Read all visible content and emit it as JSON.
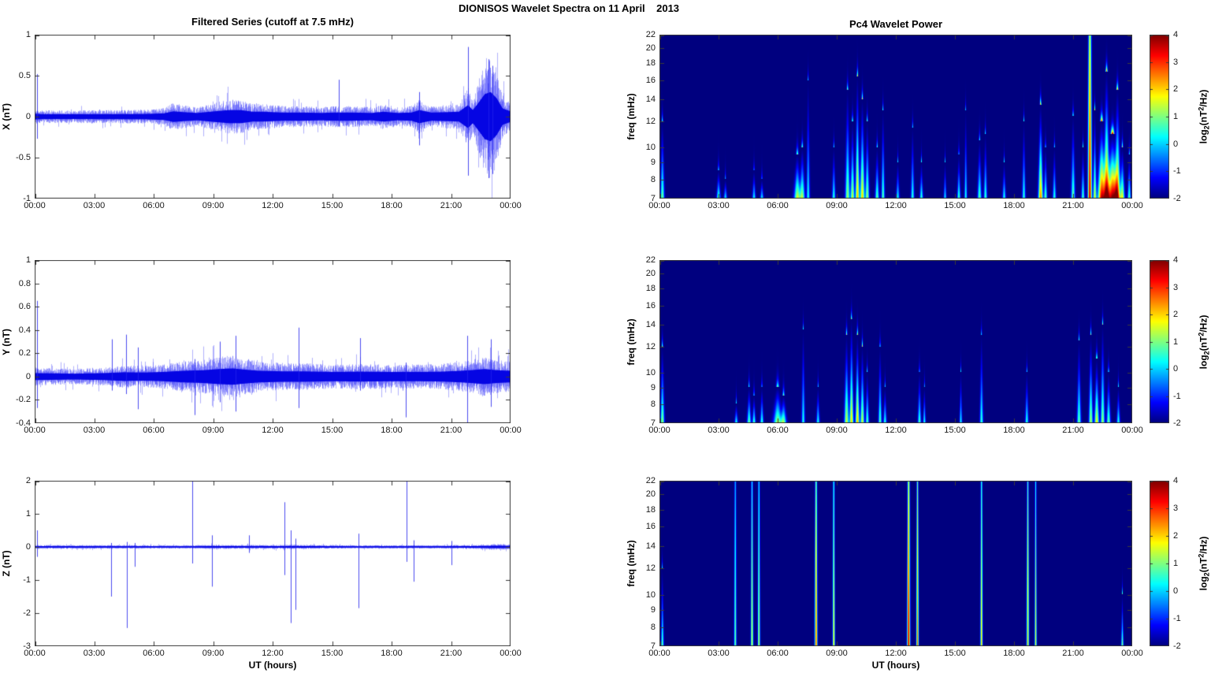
{
  "figure": {
    "title": "DIONISOS Wavelet Spectra on 11 April    2013"
  },
  "columns": {
    "left_title": "Filtered Series (cutoff at 7.5 mHz)",
    "right_title": "Pc4 Wavelet Power"
  },
  "time_axis": {
    "label": "UT (hours)",
    "tick_hours": [
      0,
      3,
      6,
      9,
      12,
      15,
      18,
      21,
      24
    ],
    "tick_labels": [
      "00:00",
      "03:00",
      "06:00",
      "09:00",
      "12:00",
      "15:00",
      "18:00",
      "21:00",
      "00:00"
    ],
    "range_hours": [
      0,
      24
    ]
  },
  "freq_axis": {
    "label": "freq (mHz)",
    "scale": "log",
    "ticks": [
      22,
      20,
      18,
      16,
      14,
      12,
      10,
      9,
      8,
      7
    ],
    "range_mhz": [
      7,
      22
    ]
  },
  "colorbar": {
    "label_parts": {
      "pre": "log",
      "sub": "2",
      "mid": "(nT",
      "sup": "2",
      "post": "/Hz)"
    },
    "ticks": [
      4,
      3,
      2,
      1,
      0,
      -1,
      -2
    ],
    "range": [
      -2,
      4
    ],
    "colormap": "jet"
  },
  "palette": {
    "series_line": "#0000e6",
    "heat_background": "#000080",
    "frame": "#3a3a3a"
  },
  "chart_data": [
    {
      "id": "x-filtered-series",
      "type": "line",
      "ylabel": "X (nT)",
      "ylim": [
        -1,
        1
      ],
      "ytick_values": [
        1,
        0.5,
        0,
        -0.5,
        -1
      ],
      "ytick_labels": [
        "1",
        "0.5",
        "0",
        "-0.5",
        "-1"
      ],
      "noise_envelope": [
        [
          0,
          0.07
        ],
        [
          0.3,
          0.06
        ],
        [
          3,
          0.06
        ],
        [
          5.5,
          0.065
        ],
        [
          6.5,
          0.08
        ],
        [
          7.0,
          0.13
        ],
        [
          7.5,
          0.11
        ],
        [
          8.2,
          0.09
        ],
        [
          9.3,
          0.14
        ],
        [
          9.8,
          0.16
        ],
        [
          10.4,
          0.16
        ],
        [
          11,
          0.12
        ],
        [
          11.5,
          0.12
        ],
        [
          12.5,
          0.1
        ],
        [
          13.5,
          0.1
        ],
        [
          14.5,
          0.09
        ],
        [
          15,
          0.1
        ],
        [
          16,
          0.1
        ],
        [
          17,
          0.09
        ],
        [
          17.6,
          0.12
        ],
        [
          18.3,
          0.09
        ],
        [
          19.0,
          0.1
        ],
        [
          19.4,
          0.16
        ],
        [
          20,
          0.1
        ],
        [
          20.8,
          0.11
        ],
        [
          21.4,
          0.12
        ],
        [
          21.85,
          0.28
        ],
        [
          22.1,
          0.16
        ],
        [
          22.4,
          0.35
        ],
        [
          22.7,
          0.55
        ],
        [
          23.0,
          0.6
        ],
        [
          23.3,
          0.45
        ],
        [
          23.6,
          0.2
        ],
        [
          24,
          0.13
        ]
      ],
      "spikes": [
        [
          0.12,
          0.52,
          -0.27
        ],
        [
          15.35,
          0.45,
          -0.12
        ],
        [
          19.4,
          0.3,
          -0.35
        ],
        [
          21.85,
          0.85,
          -0.72
        ],
        [
          22.9,
          0.7,
          -0.75
        ],
        [
          23.1,
          0.62,
          -0.7
        ]
      ]
    },
    {
      "id": "y-filtered-series",
      "type": "line",
      "ylabel": "Y (nT)",
      "ylim": [
        -0.4,
        1
      ],
      "ytick_values": [
        1,
        0.8,
        0.6,
        0.4,
        0.2,
        0,
        -0.2,
        -0.4
      ],
      "ytick_labels": [
        "1",
        "0.8",
        "0.6",
        "0.4",
        "0.2",
        "0",
        "-0.2",
        "-0.4"
      ],
      "noise_envelope": [
        [
          0,
          0.06
        ],
        [
          2,
          0.05
        ],
        [
          3.5,
          0.06
        ],
        [
          4.5,
          0.075
        ],
        [
          5.5,
          0.07
        ],
        [
          6.5,
          0.08
        ],
        [
          7.5,
          0.1
        ],
        [
          8.5,
          0.11
        ],
        [
          9.3,
          0.13
        ],
        [
          10,
          0.14
        ],
        [
          10.6,
          0.12
        ],
        [
          11.3,
          0.1
        ],
        [
          12.5,
          0.09
        ],
        [
          13.5,
          0.09
        ],
        [
          15,
          0.08
        ],
        [
          16.5,
          0.085
        ],
        [
          18,
          0.08
        ],
        [
          19.5,
          0.08
        ],
        [
          20.5,
          0.085
        ],
        [
          21.5,
          0.1
        ],
        [
          22,
          0.11
        ],
        [
          22.7,
          0.13
        ],
        [
          23.3,
          0.11
        ],
        [
          24,
          0.1
        ]
      ],
      "spikes": [
        [
          0.12,
          0.65,
          -0.27
        ],
        [
          3.9,
          0.32,
          -0.12
        ],
        [
          4.6,
          0.36,
          -0.15
        ],
        [
          5.2,
          0.25,
          -0.28
        ],
        [
          8.05,
          0.15,
          -0.33
        ],
        [
          9.35,
          0.3,
          -0.22
        ],
        [
          10.15,
          0.35,
          -0.3
        ],
        [
          13.3,
          0.42,
          -0.27
        ],
        [
          16.4,
          0.33,
          -0.12
        ],
        [
          18.7,
          0.12,
          -0.35
        ],
        [
          21.8,
          0.35,
          -0.42
        ],
        [
          23.0,
          0.32,
          -0.26
        ]
      ]
    },
    {
      "id": "z-filtered-series",
      "type": "line",
      "ylabel": "Z (nT)",
      "ylim": [
        -3,
        2
      ],
      "ytick_values": [
        2,
        1,
        0,
        -1,
        -2,
        -3
      ],
      "ytick_labels": [
        "2",
        "1",
        "0",
        "-1",
        "-2",
        "-3"
      ],
      "noise_envelope": [
        [
          0,
          0.045
        ],
        [
          8,
          0.04
        ],
        [
          9,
          0.05
        ],
        [
          11,
          0.045
        ],
        [
          13,
          0.05
        ],
        [
          16,
          0.04
        ],
        [
          20,
          0.04
        ],
        [
          22.5,
          0.05
        ],
        [
          23.2,
          0.07
        ],
        [
          24,
          0.06
        ]
      ],
      "spikes": [
        [
          0.12,
          0.5,
          -0.3
        ],
        [
          3.85,
          0.12,
          -1.5
        ],
        [
          4.65,
          0.15,
          -2.45
        ],
        [
          5.05,
          0.12,
          -0.6
        ],
        [
          7.95,
          2.0,
          -0.5
        ],
        [
          8.95,
          0.35,
          -1.2
        ],
        [
          10.8,
          0.35,
          -0.18
        ],
        [
          12.6,
          1.35,
          -0.85
        ],
        [
          12.9,
          0.5,
          -2.3
        ],
        [
          13.15,
          0.25,
          -1.9
        ],
        [
          16.35,
          0.4,
          -1.85
        ],
        [
          18.75,
          2.0,
          -0.45
        ],
        [
          19.1,
          0.2,
          -1.05
        ],
        [
          21.0,
          0.18,
          -0.55
        ]
      ]
    },
    {
      "id": "x-wavelet-power",
      "type": "heatmap",
      "value_scale": "log2(nT^2/Hz)",
      "vmin": -2,
      "vmax": 4,
      "events_format": [
        "time_h",
        "sigma_h",
        "freq_top_mhz",
        "peak_log2_power"
      ],
      "events": [
        [
          0.15,
          0.06,
          12,
          1.0
        ],
        [
          3.0,
          0.06,
          8.5,
          0.9
        ],
        [
          3.35,
          0.05,
          8,
          0.3
        ],
        [
          4.8,
          0.05,
          8.5,
          0.4
        ],
        [
          5.2,
          0.05,
          8,
          0.35
        ],
        [
          7.0,
          0.1,
          9.5,
          1.6
        ],
        [
          7.25,
          0.08,
          10,
          1.3
        ],
        [
          7.55,
          0.05,
          16,
          0.4
        ],
        [
          8.85,
          0.05,
          10,
          0.6
        ],
        [
          9.55,
          0.07,
          15,
          1.3
        ],
        [
          9.8,
          0.06,
          12,
          1.6
        ],
        [
          10.05,
          0.06,
          16.5,
          2.3
        ],
        [
          10.3,
          0.07,
          14,
          2.1
        ],
        [
          10.55,
          0.06,
          12,
          1.3
        ],
        [
          11.05,
          0.06,
          10,
          0.9
        ],
        [
          11.35,
          0.05,
          13,
          0.9
        ],
        [
          12.1,
          0.05,
          9,
          0.4
        ],
        [
          12.85,
          0.05,
          11.5,
          0.6
        ],
        [
          13.3,
          0.05,
          9,
          0.7
        ],
        [
          14.5,
          0.04,
          9,
          0.3
        ],
        [
          15.2,
          0.05,
          9.5,
          0.8
        ],
        [
          15.55,
          0.04,
          13,
          0.5
        ],
        [
          16.25,
          0.06,
          10.5,
          0.9
        ],
        [
          16.55,
          0.05,
          11,
          0.7
        ],
        [
          17.5,
          0.05,
          9,
          0.5
        ],
        [
          18.5,
          0.05,
          12,
          0.6
        ],
        [
          19.35,
          0.07,
          13.5,
          2.6
        ],
        [
          19.6,
          0.05,
          10,
          0.9
        ],
        [
          20.05,
          0.05,
          10,
          0.6
        ],
        [
          21.0,
          0.06,
          12.5,
          1.0
        ],
        [
          21.5,
          0.05,
          10,
          0.8
        ],
        [
          21.85,
          0.06,
          22.5,
          3.6
        ],
        [
          22.1,
          0.05,
          13,
          1.6
        ],
        [
          22.45,
          0.12,
          12,
          3.6
        ],
        [
          22.7,
          0.09,
          17,
          3.2
        ],
        [
          23.0,
          0.16,
          11,
          4.0
        ],
        [
          23.25,
          0.09,
          15,
          2.6
        ],
        [
          23.5,
          0.07,
          10,
          1.6
        ],
        [
          23.85,
          0.05,
          9.5,
          0.9
        ]
      ]
    },
    {
      "id": "y-wavelet-power",
      "type": "heatmap",
      "value_scale": "log2(nT^2/Hz)",
      "vmin": -2,
      "vmax": 4,
      "events_format": [
        "time_h",
        "sigma_h",
        "freq_top_mhz",
        "peak_log2_power"
      ],
      "events": [
        [
          0.15,
          0.06,
          12,
          1.2
        ],
        [
          3.9,
          0.05,
          8,
          0.5
        ],
        [
          4.55,
          0.06,
          9,
          1.0
        ],
        [
          4.8,
          0.05,
          8.5,
          0.8
        ],
        [
          5.2,
          0.05,
          9,
          0.7
        ],
        [
          6.0,
          0.13,
          9,
          1.4
        ],
        [
          6.3,
          0.09,
          8.5,
          1.1
        ],
        [
          7.3,
          0.05,
          13.5,
          0.5
        ],
        [
          8.05,
          0.05,
          9,
          0.5
        ],
        [
          9.5,
          0.07,
          13,
          1.6
        ],
        [
          9.75,
          0.06,
          14.5,
          2.1
        ],
        [
          10.05,
          0.06,
          13,
          2.3
        ],
        [
          10.3,
          0.06,
          12,
          1.6
        ],
        [
          10.55,
          0.05,
          10,
          0.9
        ],
        [
          11.2,
          0.05,
          12,
          0.9
        ],
        [
          11.45,
          0.05,
          9,
          0.6
        ],
        [
          13.2,
          0.05,
          10,
          0.8
        ],
        [
          13.45,
          0.04,
          9,
          0.5
        ],
        [
          15.3,
          0.04,
          10,
          0.4
        ],
        [
          16.35,
          0.05,
          13,
          0.7
        ],
        [
          18.65,
          0.05,
          10,
          0.6
        ],
        [
          21.3,
          0.06,
          12.5,
          1.0
        ],
        [
          21.9,
          0.06,
          13,
          1.4
        ],
        [
          22.2,
          0.07,
          11,
          1.9
        ],
        [
          22.5,
          0.06,
          14,
          1.3
        ],
        [
          22.8,
          0.06,
          10,
          1.0
        ],
        [
          23.3,
          0.05,
          9,
          0.6
        ]
      ]
    },
    {
      "id": "z-wavelet-power",
      "type": "heatmap",
      "value_scale": "log2(nT^2/Hz)",
      "vmin": -2,
      "vmax": 4,
      "events_format": [
        "time_h",
        "sigma_h",
        "freq_top_mhz",
        "peak_log2_power"
      ],
      "events": [
        [
          0.15,
          0.04,
          12,
          0.9
        ],
        [
          3.85,
          0.035,
          22.5,
          1.0
        ],
        [
          4.7,
          0.035,
          22.5,
          1.7
        ],
        [
          5.05,
          0.035,
          22.5,
          1.5
        ],
        [
          7.95,
          0.04,
          22.5,
          2.9
        ],
        [
          8.85,
          0.035,
          22.5,
          1.9
        ],
        [
          12.65,
          0.045,
          22.5,
          3.7
        ],
        [
          13.1,
          0.035,
          22.5,
          2.7
        ],
        [
          16.35,
          0.035,
          22.5,
          2.1
        ],
        [
          18.7,
          0.035,
          22.5,
          2.3
        ],
        [
          19.1,
          0.03,
          22.5,
          1.7
        ],
        [
          23.5,
          0.035,
          10,
          1.1
        ]
      ]
    }
  ]
}
